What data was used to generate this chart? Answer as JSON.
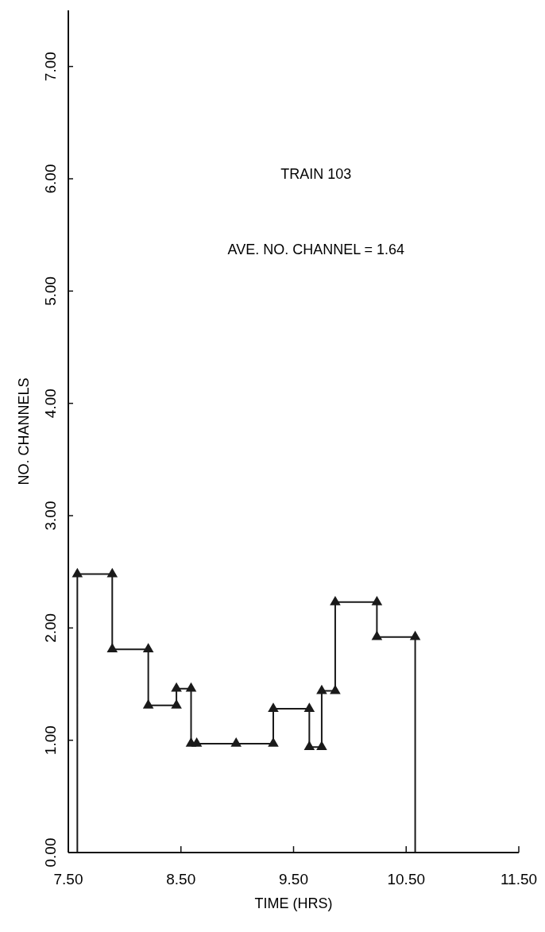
{
  "chart_data": {
    "type": "line",
    "xlabel": "TIME  (HRS)",
    "ylabel": "NO. CHANNELS",
    "annotations": [
      "TRAIN 103",
      "AVE.  NO.  CHANNEL = 1.64"
    ],
    "xlim": [
      7.5,
      11.5
    ],
    "ylim": [
      0,
      7.5
    ],
    "xticks": [
      {
        "value": 7.5,
        "label": "7.50"
      },
      {
        "value": 8.5,
        "label": "8.50"
      },
      {
        "value": 9.5,
        "label": "9.50"
      },
      {
        "value": 10.5,
        "label": "10.50"
      },
      {
        "value": 11.5,
        "label": "11.50"
      }
    ],
    "yticks": [
      {
        "value": 0,
        "label": "0.00"
      },
      {
        "value": 1,
        "label": "1.00"
      },
      {
        "value": 2,
        "label": "2.00"
      },
      {
        "value": 3,
        "label": "3.00"
      },
      {
        "value": 4,
        "label": "4.00"
      },
      {
        "value": 5,
        "label": "5.00"
      },
      {
        "value": 6,
        "label": "6.00"
      },
      {
        "value": 7,
        "label": "7.00"
      }
    ],
    "grid": false,
    "series": [
      {
        "marker": "none",
        "color": "#1a1a1a",
        "x": [
          7.58,
          7.58,
          7.89,
          7.89,
          8.21,
          8.21,
          8.46,
          8.46,
          8.59,
          8.59,
          8.64,
          8.99,
          9.32,
          9.32,
          9.64,
          9.64,
          9.75,
          9.75,
          9.87,
          9.87,
          10.24,
          10.24,
          10.58,
          10.58
        ],
        "values": [
          0,
          2.48,
          2.48,
          1.81,
          1.81,
          1.31,
          1.31,
          1.46,
          1.46,
          0.97,
          0.97,
          0.97,
          0.97,
          1.28,
          1.28,
          0.94,
          0.94,
          1.44,
          1.44,
          2.23,
          2.23,
          1.92,
          1.92,
          0
        ]
      },
      {
        "type": "scatter",
        "marker": "triangle",
        "color": "#1a1a1a",
        "x": [
          7.58,
          7.89,
          7.89,
          8.21,
          8.21,
          8.46,
          8.46,
          8.59,
          8.59,
          8.64,
          8.99,
          9.32,
          9.32,
          9.64,
          9.64,
          9.75,
          9.75,
          9.87,
          9.87,
          10.24,
          10.24,
          10.58
        ],
        "values": [
          2.48,
          2.48,
          1.81,
          1.81,
          1.31,
          1.31,
          1.46,
          1.46,
          0.97,
          0.97,
          0.97,
          0.97,
          1.28,
          1.28,
          0.94,
          0.94,
          1.44,
          1.44,
          2.23,
          2.23,
          1.92,
          1.92
        ]
      }
    ]
  }
}
